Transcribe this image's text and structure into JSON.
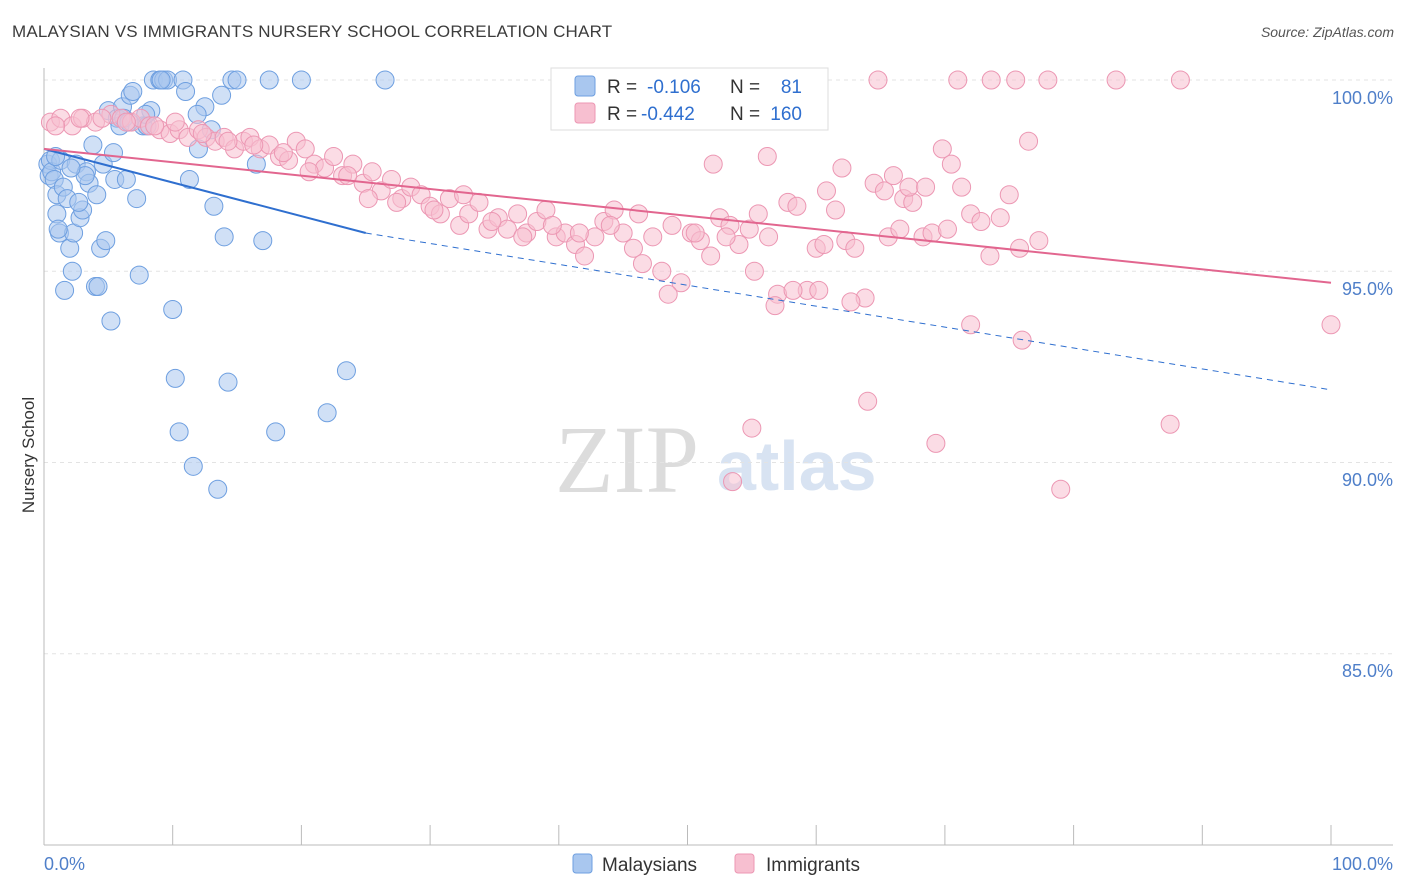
{
  "header": {
    "title": "MALAYSIAN VS IMMIGRANTS NURSERY SCHOOL CORRELATION CHART",
    "source": "Source: ZipAtlas.com"
  },
  "watermark": {
    "zip": "ZIP",
    "atlas": "atlas"
  },
  "legend_top": {
    "rows": [
      {
        "r_label": "R =",
        "r_value": "-0.106",
        "n_label": "N =",
        "n_value": "81"
      },
      {
        "r_label": "R =",
        "r_value": "-0.442",
        "n_label": "N =",
        "n_value": "160"
      }
    ]
  },
  "legend_bottom": {
    "malaysians": "Malaysians",
    "immigrants": "Immigrants"
  },
  "colors": {
    "malaysians_fill": "#a9c7ef",
    "malaysians_stroke": "#6e9fe0",
    "malaysians_line": "#2f6fcf",
    "immigrants_fill": "#f7bfd0",
    "immigrants_stroke": "#ec97b3",
    "immigrants_line": "#e2668f",
    "tick": "#4f7fc9"
  },
  "chart_data": {
    "type": "scatter",
    "title": "MALAYSIAN VS IMMIGRANTS NURSERY SCHOOL CORRELATION CHART",
    "xlabel": "",
    "ylabel": "Nursery School",
    "x_tick_labels": [
      "0.0%",
      "100.0%"
    ],
    "y_tick_labels": [
      "100.0%",
      "95.0%",
      "90.0%",
      "85.0%"
    ],
    "xlim": [
      0,
      100
    ],
    "ylim": [
      80.2,
      100.4
    ],
    "grid": true,
    "legend_position": "top-center",
    "series": [
      {
        "name": "Malaysians",
        "R": -0.106,
        "N": 81,
        "trend": {
          "x_start": 0,
          "y_start": 98.2,
          "x_solid_end": 25,
          "y_solid_end": 96.0,
          "x_dash_end": 100,
          "y_dash_end": 91.9
        },
        "points": [
          [
            0.3,
            97.8
          ],
          [
            0.4,
            97.5
          ],
          [
            0.5,
            97.9
          ],
          [
            0.6,
            97.6
          ],
          [
            0.8,
            97.4
          ],
          [
            1.0,
            96.5
          ],
          [
            1.0,
            97.0
          ],
          [
            1.2,
            96.0
          ],
          [
            1.3,
            97.9
          ],
          [
            1.5,
            97.2
          ],
          [
            1.6,
            94.5
          ],
          [
            1.8,
            96.9
          ],
          [
            2.0,
            95.6
          ],
          [
            2.2,
            95.0
          ],
          [
            2.3,
            96.0
          ],
          [
            2.5,
            97.8
          ],
          [
            2.8,
            96.4
          ],
          [
            3.0,
            96.6
          ],
          [
            3.3,
            97.6
          ],
          [
            3.5,
            97.3
          ],
          [
            3.8,
            98.3
          ],
          [
            4.0,
            94.6
          ],
          [
            4.2,
            94.6
          ],
          [
            4.4,
            95.6
          ],
          [
            4.6,
            97.8
          ],
          [
            4.8,
            95.8
          ],
          [
            5.0,
            99.2
          ],
          [
            5.2,
            93.7
          ],
          [
            5.5,
            97.4
          ],
          [
            5.7,
            99.0
          ],
          [
            5.9,
            98.8
          ],
          [
            6.1,
            99.3
          ],
          [
            6.4,
            97.4
          ],
          [
            6.7,
            99.6
          ],
          [
            6.9,
            99.7
          ],
          [
            7.2,
            96.9
          ],
          [
            7.4,
            94.9
          ],
          [
            7.7,
            98.8
          ],
          [
            8.0,
            98.8
          ],
          [
            8.3,
            99.2
          ],
          [
            8.5,
            100.0
          ],
          [
            9.0,
            100.0
          ],
          [
            9.3,
            100.0
          ],
          [
            9.6,
            100.0
          ],
          [
            10.0,
            94.0
          ],
          [
            10.2,
            92.2
          ],
          [
            10.5,
            90.8
          ],
          [
            10.8,
            100.0
          ],
          [
            11.0,
            99.7
          ],
          [
            11.3,
            97.4
          ],
          [
            11.6,
            89.9
          ],
          [
            12.0,
            98.2
          ],
          [
            12.5,
            99.3
          ],
          [
            13.0,
            98.7
          ],
          [
            13.2,
            96.7
          ],
          [
            13.5,
            89.3
          ],
          [
            13.8,
            99.6
          ],
          [
            14.0,
            95.9
          ],
          [
            14.3,
            92.1
          ],
          [
            14.6,
            100.0
          ],
          [
            15.0,
            100.0
          ],
          [
            16.5,
            97.8
          ],
          [
            17.0,
            95.8
          ],
          [
            17.5,
            100.0
          ],
          [
            18.0,
            90.8
          ],
          [
            20.0,
            100.0
          ],
          [
            22.0,
            91.3
          ],
          [
            23.5,
            92.4
          ],
          [
            26.5,
            100.0
          ],
          [
            1.1,
            96.1
          ],
          [
            2.7,
            96.8
          ],
          [
            3.2,
            97.5
          ],
          [
            4.1,
            97.0
          ],
          [
            0.9,
            98.0
          ],
          [
            6.2,
            99.0
          ],
          [
            7.9,
            99.1
          ],
          [
            5.4,
            98.1
          ],
          [
            2.1,
            97.7
          ],
          [
            9.1,
            100.0
          ],
          [
            11.9,
            99.1
          ],
          [
            6.6,
            98.9
          ]
        ]
      },
      {
        "name": "Immigrants",
        "R": -0.442,
        "N": 160,
        "trend": {
          "x_start": 0,
          "y_start": 98.2,
          "x_end": 100,
          "y_end": 94.7
        },
        "points": [
          [
            0.5,
            98.9
          ],
          [
            1.3,
            99.0
          ],
          [
            2.2,
            98.8
          ],
          [
            3.0,
            99.0
          ],
          [
            4.0,
            98.9
          ],
          [
            5.2,
            99.1
          ],
          [
            6.0,
            99.0
          ],
          [
            6.8,
            98.9
          ],
          [
            7.5,
            99.0
          ],
          [
            8.2,
            98.8
          ],
          [
            9.0,
            98.7
          ],
          [
            9.8,
            98.6
          ],
          [
            10.5,
            98.7
          ],
          [
            11.2,
            98.5
          ],
          [
            12.0,
            98.7
          ],
          [
            12.6,
            98.5
          ],
          [
            13.3,
            98.4
          ],
          [
            14.0,
            98.5
          ],
          [
            14.8,
            98.2
          ],
          [
            15.5,
            98.4
          ],
          [
            16.0,
            98.5
          ],
          [
            16.8,
            98.2
          ],
          [
            17.5,
            98.3
          ],
          [
            18.3,
            98.0
          ],
          [
            19.0,
            97.9
          ],
          [
            19.6,
            98.4
          ],
          [
            20.3,
            98.2
          ],
          [
            21.0,
            97.8
          ],
          [
            21.8,
            97.7
          ],
          [
            22.5,
            98.0
          ],
          [
            23.2,
            97.5
          ],
          [
            24.0,
            97.8
          ],
          [
            24.8,
            97.3
          ],
          [
            25.5,
            97.6
          ],
          [
            26.2,
            97.1
          ],
          [
            27.0,
            97.4
          ],
          [
            27.8,
            96.9
          ],
          [
            28.5,
            97.2
          ],
          [
            29.3,
            97.0
          ],
          [
            30.0,
            96.7
          ],
          [
            30.8,
            96.5
          ],
          [
            31.5,
            96.9
          ],
          [
            32.3,
            96.2
          ],
          [
            33.0,
            96.5
          ],
          [
            33.8,
            96.8
          ],
          [
            34.5,
            96.1
          ],
          [
            35.3,
            96.4
          ],
          [
            36.0,
            96.1
          ],
          [
            36.8,
            96.5
          ],
          [
            37.5,
            96.0
          ],
          [
            38.3,
            96.3
          ],
          [
            39.0,
            96.6
          ],
          [
            39.8,
            95.9
          ],
          [
            40.5,
            96.0
          ],
          [
            41.3,
            95.7
          ],
          [
            42.0,
            95.4
          ],
          [
            42.8,
            95.9
          ],
          [
            43.5,
            96.3
          ],
          [
            44.3,
            96.6
          ],
          [
            45.0,
            96.0
          ],
          [
            45.8,
            95.6
          ],
          [
            46.5,
            95.2
          ],
          [
            47.3,
            95.9
          ],
          [
            48.0,
            95.0
          ],
          [
            48.8,
            96.2
          ],
          [
            49.5,
            94.7
          ],
          [
            50.3,
            96.0
          ],
          [
            51.0,
            95.8
          ],
          [
            51.8,
            95.4
          ],
          [
            52.5,
            96.4
          ],
          [
            53.3,
            96.2
          ],
          [
            54.0,
            95.7
          ],
          [
            54.8,
            96.1
          ],
          [
            55.5,
            96.5
          ],
          [
            56.3,
            95.9
          ],
          [
            57.0,
            94.4
          ],
          [
            57.8,
            96.8
          ],
          [
            58.5,
            96.7
          ],
          [
            59.3,
            94.5
          ],
          [
            60.0,
            95.6
          ],
          [
            60.8,
            97.1
          ],
          [
            61.5,
            96.6
          ],
          [
            62.3,
            95.8
          ],
          [
            63.0,
            95.6
          ],
          [
            63.8,
            94.3
          ],
          [
            64.5,
            97.3
          ],
          [
            65.3,
            97.1
          ],
          [
            66.0,
            97.5
          ],
          [
            66.8,
            96.9
          ],
          [
            67.5,
            96.8
          ],
          [
            68.3,
            95.9
          ],
          [
            69.0,
            96.0
          ],
          [
            69.8,
            98.2
          ],
          [
            70.5,
            97.8
          ],
          [
            71.3,
            97.2
          ],
          [
            72.0,
            96.5
          ],
          [
            72.8,
            96.3
          ],
          [
            73.5,
            95.4
          ],
          [
            74.3,
            96.4
          ],
          [
            75.0,
            97.0
          ],
          [
            75.8,
            95.6
          ],
          [
            76.5,
            98.4
          ],
          [
            77.3,
            95.8
          ],
          [
            0.9,
            98.8
          ],
          [
            2.8,
            99.0
          ],
          [
            4.5,
            99.0
          ],
          [
            6.4,
            98.9
          ],
          [
            8.6,
            98.8
          ],
          [
            10.2,
            98.9
          ],
          [
            12.3,
            98.6
          ],
          [
            14.3,
            98.4
          ],
          [
            16.3,
            98.3
          ],
          [
            18.6,
            98.1
          ],
          [
            20.6,
            97.6
          ],
          [
            23.6,
            97.5
          ],
          [
            25.2,
            96.9
          ],
          [
            27.4,
            96.8
          ],
          [
            30.3,
            96.6
          ],
          [
            32.6,
            97.0
          ],
          [
            34.8,
            96.3
          ],
          [
            37.2,
            95.9
          ],
          [
            39.5,
            96.2
          ],
          [
            41.6,
            96.0
          ],
          [
            44.0,
            96.2
          ],
          [
            46.2,
            96.5
          ],
          [
            48.5,
            94.4
          ],
          [
            50.6,
            96.0
          ],
          [
            53.0,
            95.9
          ],
          [
            55.2,
            95.0
          ],
          [
            58.2,
            94.5
          ],
          [
            60.6,
            95.7
          ],
          [
            62.7,
            94.2
          ],
          [
            65.6,
            95.9
          ],
          [
            67.2,
            97.2
          ],
          [
            70.2,
            96.1
          ],
          [
            56.8,
            94.1
          ],
          [
            60.2,
            94.5
          ],
          [
            64.0,
            91.6
          ],
          [
            69.3,
            90.5
          ],
          [
            76.0,
            93.2
          ],
          [
            79.0,
            89.3
          ],
          [
            87.5,
            91.0
          ],
          [
            100.0,
            93.6
          ],
          [
            72.0,
            93.6
          ],
          [
            68.5,
            97.2
          ],
          [
            52.0,
            97.8
          ],
          [
            56.2,
            98.0
          ],
          [
            62.0,
            97.7
          ],
          [
            64.8,
            100.0
          ],
          [
            71.0,
            100.0
          ],
          [
            73.6,
            100.0
          ],
          [
            75.5,
            100.0
          ],
          [
            78.0,
            100.0
          ],
          [
            83.3,
            100.0
          ],
          [
            88.3,
            100.0
          ],
          [
            57.0,
            99.5
          ],
          [
            60.0,
            99.0
          ],
          [
            53.5,
            89.5
          ],
          [
            55.0,
            90.9
          ],
          [
            66.5,
            96.1
          ]
        ]
      }
    ]
  }
}
